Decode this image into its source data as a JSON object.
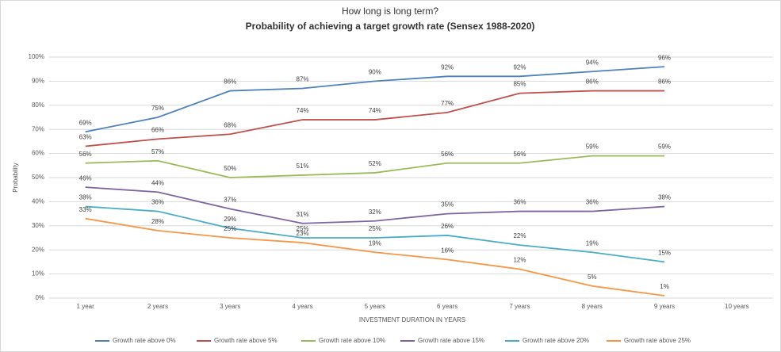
{
  "chart_data": {
    "type": "line",
    "title": "How long is long term?",
    "subtitle": "Probability of achieving a target growth rate (Sensex 1988-2020)",
    "xlabel": "INVESTMENT DURATION IN YEARS",
    "ylabel": "Probability",
    "categories": [
      "1 year",
      "2 years",
      "3 years",
      "4 years",
      "5 years",
      "6 years",
      "7  years",
      "8 years",
      "9  years",
      "10 years"
    ],
    "series": [
      {
        "name": "Growth rate above 0%",
        "color": "#4f81bd",
        "values": [
          69,
          75,
          86,
          87,
          90,
          92,
          92,
          94,
          96,
          null
        ],
        "value_labels": [
          "69%",
          "75%",
          "86%",
          "87%",
          "90%",
          "92%",
          "92%",
          "94%",
          "96%",
          null
        ]
      },
      {
        "name": "Growth rate above 5%",
        "color": "#c0504d",
        "values": [
          63,
          66,
          68,
          74,
          74,
          77,
          85,
          86,
          86,
          null
        ],
        "value_labels": [
          "63%",
          "66%",
          "68%",
          "74%",
          "74%",
          "77%",
          "85%",
          "86%",
          "86%",
          null
        ]
      },
      {
        "name": "Growth rate above 10%",
        "color": "#9bbb59",
        "values": [
          56,
          57,
          50,
          51,
          52,
          56,
          56,
          59,
          59,
          null
        ],
        "value_labels": [
          "56%",
          "57%",
          "50%",
          "51%",
          "52%",
          "56%",
          "56%",
          "59%",
          "59%",
          null
        ]
      },
      {
        "name": "Growth rate above 15%",
        "color": "#8064a2",
        "values": [
          46,
          44,
          37,
          31,
          32,
          35,
          36,
          36,
          38,
          null
        ],
        "value_labels": [
          "46%",
          "44%",
          "37%",
          "31%",
          "32%",
          "35%",
          "36%",
          "36%",
          "38%",
          null
        ]
      },
      {
        "name": "Growth rate above 20%",
        "color": "#4bacc6",
        "values": [
          38,
          36,
          29,
          25,
          25,
          26,
          22,
          19,
          15,
          null
        ],
        "value_labels": [
          "38%",
          "36%",
          "29%",
          "25%",
          "25%",
          "26%",
          "22%",
          "19%",
          "15%",
          null
        ]
      },
      {
        "name": "Growth rate above 25%",
        "color": "#f79646",
        "values": [
          33,
          28,
          25,
          23,
          19,
          16,
          12,
          5,
          1,
          null
        ],
        "value_labels": [
          "33%",
          "28%",
          "25%",
          "23%",
          "19%",
          "16%",
          "12%",
          "5%",
          "1%",
          null
        ]
      }
    ],
    "ylim": [
      0,
      100
    ],
    "yticks": [
      {
        "value": 0,
        "label": "0%"
      },
      {
        "value": 10,
        "label": "10%"
      },
      {
        "value": 20,
        "label": "20%"
      },
      {
        "value": 30,
        "label": "30%"
      },
      {
        "value": 40,
        "label": "40%"
      },
      {
        "value": 50,
        "label": "50%"
      },
      {
        "value": 60,
        "label": "60%"
      },
      {
        "value": 70,
        "label": "70%"
      },
      {
        "value": 80,
        "label": "80%"
      },
      {
        "value": 90,
        "label": "90%"
      },
      {
        "value": 100,
        "label": "100%"
      }
    ],
    "grid": true,
    "legend": "bottom"
  }
}
